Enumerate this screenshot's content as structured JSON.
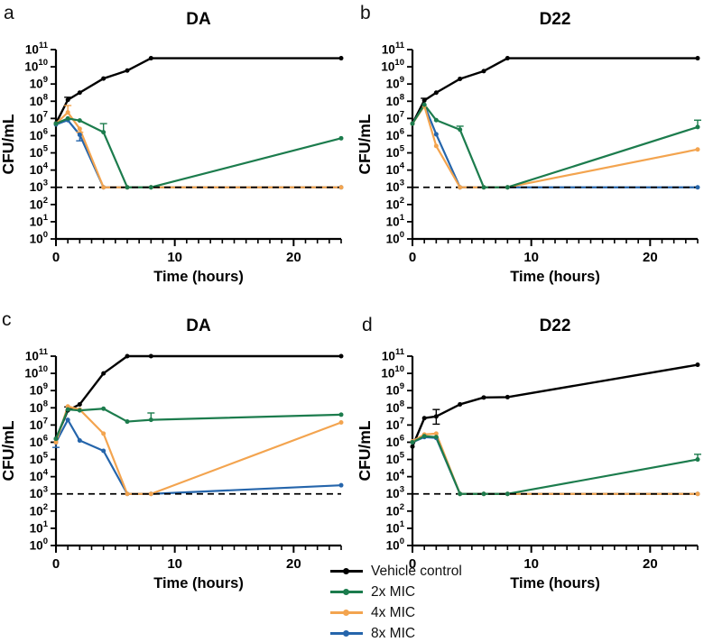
{
  "figure": {
    "background": "#ffffff",
    "panel_letters": [
      "a",
      "b",
      "c",
      "d"
    ]
  },
  "legend": {
    "entries": [
      {
        "label": "Vehicle control",
        "color": "#000000"
      },
      {
        "label": "2x MIC",
        "color": "#1c7c4d"
      },
      {
        "label": "4x MIC",
        "color": "#f3a44f"
      },
      {
        "label": "8x MIC",
        "color": "#2565ab"
      }
    ]
  },
  "chart_data": [
    {
      "type": "line",
      "panel": "a",
      "title": "DA",
      "xlabel": "Time (hours)",
      "ylabel": "CFU/mL",
      "x_hours": [
        0,
        1,
        2,
        4,
        6,
        8,
        24
      ],
      "xlim": [
        0,
        24
      ],
      "x_major_ticks": [
        0,
        10,
        20
      ],
      "x_minor_step": 1,
      "y_log_exp_range": [
        0,
        11
      ],
      "y_tick_base": 10,
      "lod_log10": 3,
      "lod_style": "dashed",
      "series": [
        {
          "name": "Vehicle control",
          "color": "#000000",
          "log10_cfu": [
            6.72,
            8.08,
            8.5,
            9.32,
            9.78,
            10.5,
            10.5
          ],
          "err_up": [
            0,
            0.15,
            0,
            0,
            0,
            0,
            0
          ],
          "err_dn": [
            0,
            0,
            0,
            0,
            0,
            0,
            0
          ]
        },
        {
          "name": "2x MIC",
          "color": "#1c7c4d",
          "log10_cfu": [
            6.7,
            7.0,
            6.88,
            6.2,
            3,
            3,
            5.85
          ],
          "err_up": [
            0,
            0,
            0,
            0.5,
            0,
            0,
            0
          ],
          "err_dn": [
            0,
            0,
            0,
            0,
            0,
            0,
            0
          ]
        },
        {
          "name": "4x MIC",
          "color": "#f3a44f",
          "log10_cfu": [
            6.7,
            7.35,
            6.4,
            3,
            3,
            3,
            3
          ],
          "err_up": [
            0,
            0.4,
            0,
            0,
            0,
            0,
            0
          ],
          "err_dn": [
            0,
            0,
            0.2,
            0,
            0,
            0,
            0
          ]
        },
        {
          "name": "8x MIC",
          "color": "#2565ab",
          "log10_cfu": [
            6.65,
            6.9,
            6.05,
            3,
            3,
            3,
            3
          ],
          "err_up": [
            0,
            0,
            0,
            0,
            0,
            0,
            0
          ],
          "err_dn": [
            0,
            0,
            0.35,
            0,
            0,
            0,
            0
          ]
        }
      ]
    },
    {
      "type": "line",
      "panel": "b",
      "title": "D22",
      "xlabel": "Time (hours)",
      "ylabel": "CFU/mL",
      "x_hours": [
        0,
        1,
        2,
        4,
        6,
        8,
        24
      ],
      "xlim": [
        0,
        24
      ],
      "x_major_ticks": [
        0,
        10,
        20
      ],
      "x_minor_step": 1,
      "y_log_exp_range": [
        0,
        11
      ],
      "y_tick_base": 10,
      "lod_log10": 3,
      "lod_style": "dashed",
      "series": [
        {
          "name": "Vehicle control",
          "color": "#000000",
          "log10_cfu": [
            6.7,
            8.05,
            8.5,
            9.3,
            9.75,
            10.5,
            10.5
          ],
          "err_up": [
            0,
            0.12,
            0,
            0,
            0,
            0,
            0
          ],
          "err_dn": [
            0,
            0,
            0,
            0,
            0,
            0,
            0
          ]
        },
        {
          "name": "2x MIC",
          "color": "#1c7c4d",
          "log10_cfu": [
            6.7,
            7.8,
            6.9,
            6.35,
            3,
            3,
            6.5
          ],
          "err_up": [
            0,
            0,
            0,
            0.2,
            0,
            0,
            0.4
          ],
          "err_dn": [
            0,
            0,
            0,
            0,
            0,
            0,
            0
          ]
        },
        {
          "name": "4x MIC",
          "color": "#f3a44f",
          "log10_cfu": [
            6.7,
            7.72,
            5.4,
            3,
            3,
            3,
            5.2
          ],
          "err_up": [
            0,
            0,
            0,
            0,
            0,
            0,
            0
          ],
          "err_dn": [
            0,
            0,
            0,
            0,
            0,
            0,
            0
          ]
        },
        {
          "name": "8x MIC",
          "color": "#2565ab",
          "log10_cfu": [
            6.7,
            7.78,
            6.08,
            3,
            3,
            3,
            3
          ],
          "err_up": [
            0,
            0,
            0,
            0,
            0,
            0,
            0
          ],
          "err_dn": [
            0,
            0,
            0,
            0,
            0,
            0,
            0
          ]
        }
      ]
    },
    {
      "type": "line",
      "panel": "c",
      "title": "DA",
      "xlabel": "Time (hours)",
      "ylabel": "CFU/mL",
      "x_hours": [
        0,
        1,
        2,
        4,
        6,
        8,
        24
      ],
      "xlim": [
        0,
        24
      ],
      "x_major_ticks": [
        0,
        10,
        20
      ],
      "x_minor_step": 1,
      "y_log_exp_range": [
        0,
        11
      ],
      "y_tick_base": 10,
      "lod_log10": 3,
      "lod_style": "dashed",
      "series": [
        {
          "name": "Vehicle control",
          "color": "#000000",
          "log10_cfu": [
            6.2,
            7.85,
            8.2,
            10.0,
            11.0,
            11.0,
            11.0
          ],
          "err_up": [
            0,
            0.2,
            0,
            0,
            0,
            0,
            0
          ],
          "err_dn": [
            0,
            0,
            0,
            0,
            0,
            0,
            0
          ]
        },
        {
          "name": "2x MIC",
          "color": "#1c7c4d",
          "log10_cfu": [
            6.2,
            7.9,
            7.85,
            7.95,
            7.2,
            7.3,
            7.6
          ],
          "err_up": [
            0,
            0,
            0,
            0,
            0,
            0.4,
            0
          ],
          "err_dn": [
            0,
            0,
            0,
            0,
            0,
            0,
            0
          ]
        },
        {
          "name": "4x MIC",
          "color": "#f3a44f",
          "log10_cfu": [
            6.0,
            8.08,
            7.9,
            6.5,
            3,
            3,
            7.15
          ],
          "err_up": [
            0,
            0,
            0,
            0,
            0,
            0,
            0
          ],
          "err_dn": [
            0,
            0,
            0,
            0,
            0,
            0,
            0
          ]
        },
        {
          "name": "8x MIC",
          "color": "#2565ab",
          "log10_cfu": [
            6.0,
            7.3,
            6.1,
            5.5,
            3,
            3,
            3.5
          ],
          "err_up": [
            0,
            0,
            0,
            0,
            0,
            0,
            0
          ],
          "err_dn": [
            0.3,
            0,
            0,
            0,
            0,
            0,
            0
          ]
        }
      ]
    },
    {
      "type": "line",
      "panel": "d",
      "title": "D22",
      "xlabel": "Time (hours)",
      "ylabel": "CFU/mL",
      "x_hours": [
        0,
        1,
        2,
        4,
        6,
        8,
        24
      ],
      "xlim": [
        0,
        24
      ],
      "x_major_ticks": [
        0,
        10,
        20
      ],
      "x_minor_step": 1,
      "y_log_exp_range": [
        0,
        11
      ],
      "y_tick_base": 10,
      "lod_log10": 3,
      "lod_style": "dashed",
      "series": [
        {
          "name": "Vehicle control",
          "color": "#000000",
          "log10_cfu": [
            5.75,
            7.4,
            7.5,
            8.2,
            8.6,
            8.62,
            10.5
          ],
          "err_up": [
            0,
            0,
            0.4,
            0,
            0,
            0,
            0
          ],
          "err_dn": [
            0,
            0,
            0.45,
            0,
            0,
            0,
            0
          ]
        },
        {
          "name": "2x MIC",
          "color": "#1c7c4d",
          "log10_cfu": [
            6.0,
            6.35,
            6.3,
            3,
            3,
            3,
            5.0
          ],
          "err_up": [
            0,
            0,
            0,
            0,
            0,
            0,
            0.3
          ],
          "err_dn": [
            0,
            0,
            0,
            0,
            0,
            0,
            0
          ]
        },
        {
          "name": "4x MIC",
          "color": "#f3a44f",
          "log10_cfu": [
            6.05,
            6.45,
            6.5,
            3,
            3,
            3,
            3
          ],
          "err_up": [
            0,
            0,
            0,
            0,
            0,
            0,
            0
          ],
          "err_dn": [
            0,
            0,
            0,
            0,
            0,
            0,
            0
          ]
        },
        {
          "name": "8x MIC",
          "color": "#2565ab",
          "log10_cfu": [
            6.0,
            6.3,
            6.25,
            3,
            3,
            3,
            3
          ],
          "err_up": [
            0,
            0,
            0,
            0,
            0,
            0,
            0
          ],
          "err_dn": [
            0,
            0,
            0,
            0,
            0,
            0,
            0
          ]
        }
      ]
    }
  ]
}
